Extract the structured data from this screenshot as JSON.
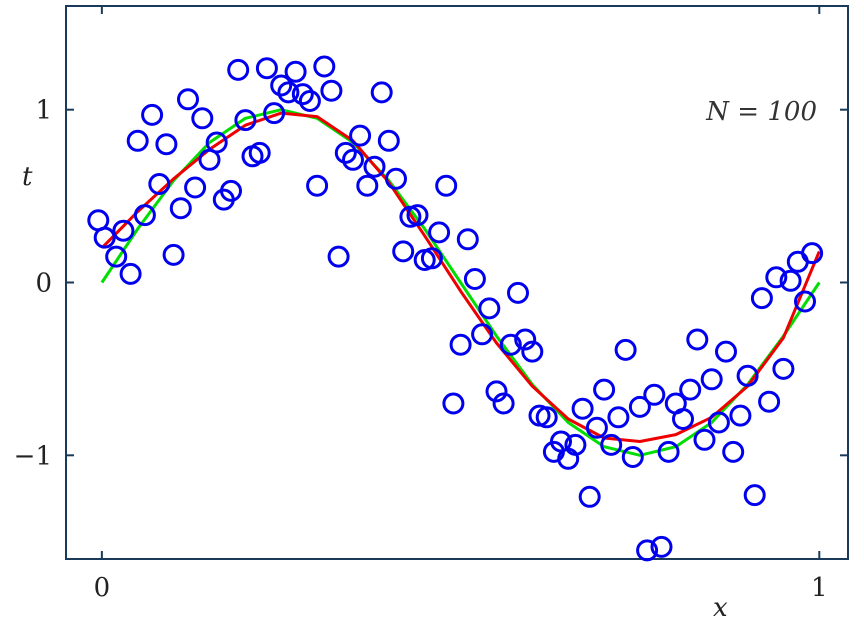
{
  "chart_data": {
    "type": "scatter",
    "xlabel": "x",
    "ylabel": "t",
    "xlim": [
      -0.05,
      1.04
    ],
    "ylim": [
      -1.6,
      1.6
    ],
    "x_ticks": [
      {
        "value": 0,
        "label": "0"
      },
      {
        "value": 1,
        "label": "1"
      }
    ],
    "y_ticks": [
      {
        "value": 1,
        "label": "1"
      },
      {
        "value": 0,
        "label": "0"
      },
      {
        "value": -1,
        "label": "−1"
      }
    ],
    "annotation": {
      "text": "N = 100",
      "position": "top-right"
    },
    "grid": false,
    "colors": {
      "points": "#0000ee",
      "true_curve": "#00dd00",
      "fit_curve": "#ee0000",
      "axes": "#1a3a5a"
    },
    "series": [
      {
        "kind": "scatter",
        "marker": "open-circle",
        "x": [
          -0.005,
          0.004,
          0.02,
          0.03,
          0.04,
          0.05,
          0.06,
          0.07,
          0.08,
          0.09,
          0.1,
          0.11,
          0.12,
          0.13,
          0.14,
          0.15,
          0.16,
          0.17,
          0.18,
          0.19,
          0.2,
          0.21,
          0.22,
          0.23,
          0.24,
          0.25,
          0.26,
          0.27,
          0.28,
          0.29,
          0.3,
          0.31,
          0.32,
          0.33,
          0.34,
          0.35,
          0.36,
          0.37,
          0.38,
          0.39,
          0.4,
          0.41,
          0.42,
          0.43,
          0.44,
          0.45,
          0.46,
          0.47,
          0.48,
          0.49,
          0.5,
          0.51,
          0.52,
          0.53,
          0.54,
          0.55,
          0.56,
          0.57,
          0.58,
          0.59,
          0.6,
          0.61,
          0.62,
          0.63,
          0.64,
          0.65,
          0.66,
          0.67,
          0.68,
          0.69,
          0.7,
          0.71,
          0.72,
          0.73,
          0.74,
          0.75,
          0.76,
          0.77,
          0.78,
          0.79,
          0.8,
          0.81,
          0.82,
          0.83,
          0.84,
          0.85,
          0.86,
          0.87,
          0.88,
          0.89,
          0.9,
          0.91,
          0.92,
          0.93,
          0.94,
          0.95,
          0.96,
          0.97,
          0.98,
          0.99
        ],
        "y": [
          0.36,
          0.26,
          0.15,
          0.3,
          0.05,
          0.82,
          0.39,
          0.97,
          0.57,
          0.8,
          0.16,
          0.43,
          1.06,
          0.55,
          0.95,
          0.71,
          0.81,
          0.48,
          0.53,
          1.23,
          0.94,
          0.73,
          0.75,
          1.24,
          0.98,
          1.14,
          1.1,
          1.22,
          1.09,
          1.05,
          0.56,
          1.25,
          1.11,
          0.15,
          0.75,
          0.71,
          0.85,
          0.56,
          0.67,
          1.1,
          0.82,
          0.6,
          0.18,
          0.38,
          0.39,
          0.13,
          0.14,
          0.29,
          0.56,
          -0.7,
          -0.36,
          0.25,
          0.02,
          -0.3,
          -0.15,
          -0.63,
          -0.7,
          -0.36,
          -0.06,
          -0.33,
          -0.4,
          -0.77,
          -0.78,
          -0.98,
          -0.92,
          -1.02,
          -0.94,
          -0.73,
          -1.24,
          -0.84,
          -0.62,
          -0.94,
          -0.78,
          -0.39,
          -1.01,
          -0.72,
          -1.55,
          -0.65,
          -1.53,
          -0.98,
          -0.7,
          -0.79,
          -0.62,
          -0.33,
          -0.91,
          -0.56,
          -0.81,
          -0.4,
          -0.98,
          -0.77,
          -0.54,
          -1.23,
          -0.09,
          -0.69,
          0.03,
          -0.5,
          0.01,
          0.12,
          -0.11,
          0.17
        ]
      },
      {
        "kind": "line",
        "role": "true_curve",
        "x": [
          0,
          0.05,
          0.1,
          0.15,
          0.2,
          0.25,
          0.3,
          0.35,
          0.4,
          0.45,
          0.5,
          0.55,
          0.6,
          0.65,
          0.7,
          0.75,
          0.8,
          0.85,
          0.9,
          0.95,
          1.0
        ],
        "y": [
          0,
          0.31,
          0.59,
          0.81,
          0.95,
          1.0,
          0.95,
          0.81,
          0.59,
          0.31,
          0,
          -0.31,
          -0.59,
          -0.81,
          -0.95,
          -1.0,
          -0.95,
          -0.81,
          -0.59,
          -0.31,
          0
        ]
      },
      {
        "kind": "line",
        "role": "fit_curve",
        "x": [
          0,
          0.05,
          0.1,
          0.15,
          0.2,
          0.25,
          0.3,
          0.35,
          0.4,
          0.45,
          0.5,
          0.55,
          0.6,
          0.65,
          0.7,
          0.75,
          0.8,
          0.85,
          0.9,
          0.95,
          1.0
        ],
        "y": [
          0.2,
          0.41,
          0.6,
          0.77,
          0.91,
          0.98,
          0.96,
          0.82,
          0.58,
          0.27,
          -0.05,
          -0.35,
          -0.6,
          -0.79,
          -0.9,
          -0.92,
          -0.88,
          -0.78,
          -0.6,
          -0.32,
          0.18
        ]
      }
    ]
  }
}
